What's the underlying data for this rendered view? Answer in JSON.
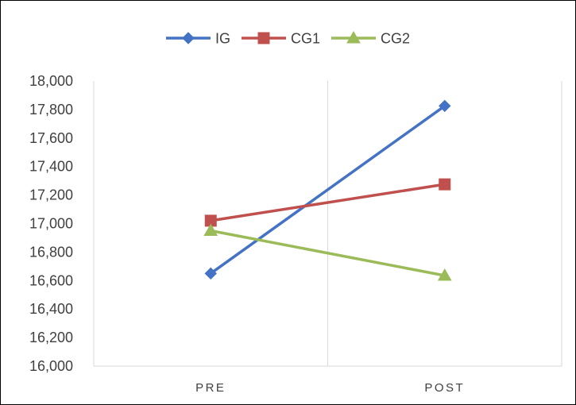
{
  "chart_data": {
    "type": "line",
    "categories": [
      "PRE",
      "POST"
    ],
    "series": [
      {
        "name": "IG",
        "values": [
          16650,
          17825
        ],
        "color": "#4472C4",
        "marker": "diamond"
      },
      {
        "name": "CG1",
        "values": [
          17020,
          17275
        ],
        "color": "#C0504D",
        "marker": "square"
      },
      {
        "name": "CG2",
        "values": [
          16950,
          16635
        ],
        "color": "#9BBB59",
        "marker": "triangle"
      }
    ],
    "title": "",
    "xlabel": "",
    "ylabel": "",
    "ylim": [
      16000,
      18000
    ],
    "yticks": [
      16000,
      16200,
      16400,
      16600,
      16800,
      17000,
      17200,
      17400,
      17600,
      17800,
      18000
    ],
    "ytick_labels": [
      "16,000",
      "16,200",
      "16,400",
      "16,600",
      "16,800",
      "17,000",
      "17,200",
      "17,400",
      "17,600",
      "17,800",
      "18,000"
    ],
    "grid": "vertical category dividers",
    "legend": "top-center"
  }
}
